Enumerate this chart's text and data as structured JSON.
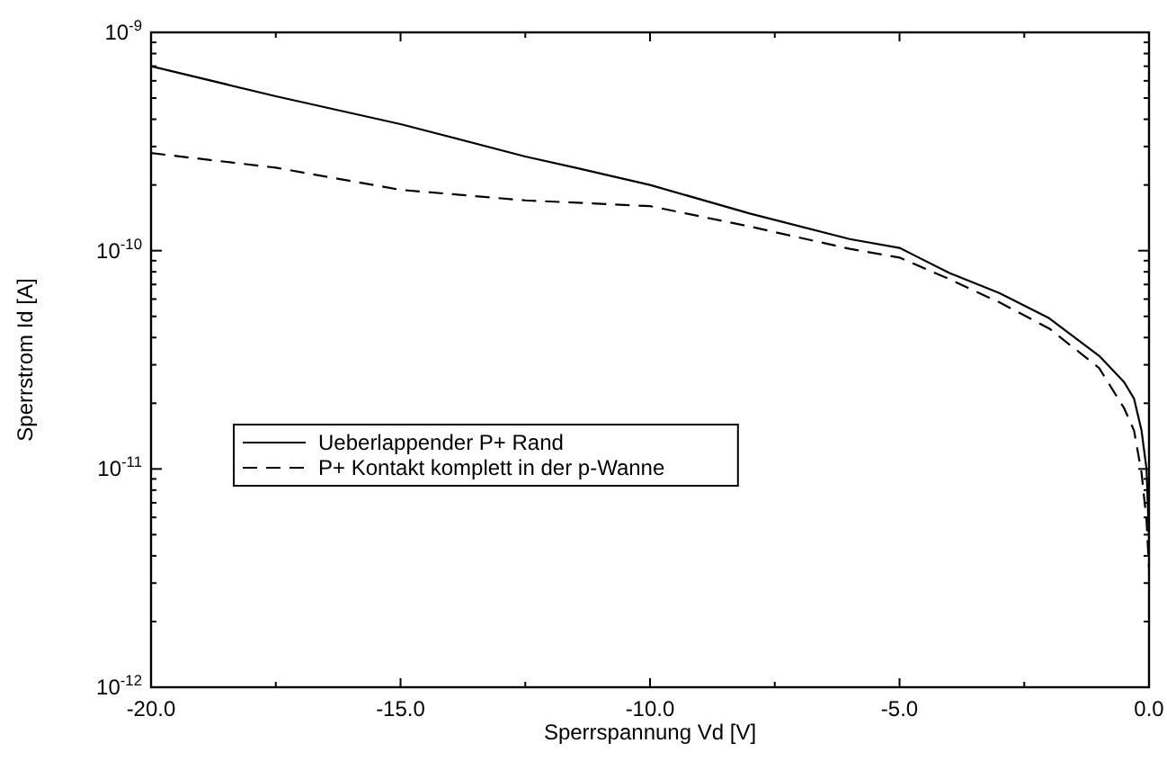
{
  "chart_data": {
    "type": "line",
    "xlabel": "Sperrspannung Vd [V]",
    "ylabel": "Sperrstrom Id [A]",
    "log": "y",
    "xlim": [
      -20,
      0
    ],
    "ylim": [
      1e-12,
      1e-09
    ],
    "xticks": [
      {
        "value": -20,
        "label": "-20.0"
      },
      {
        "value": -17.5,
        "label": null
      },
      {
        "value": -15,
        "label": "-15.0"
      },
      {
        "value": -12.5,
        "label": null
      },
      {
        "value": -10,
        "label": "-10.0"
      },
      {
        "value": -7.5,
        "label": null
      },
      {
        "value": -5,
        "label": "-5.0"
      },
      {
        "value": -2.5,
        "label": null
      },
      {
        "value": 0,
        "label": "0.0"
      }
    ],
    "yticks": [
      {
        "value": 1e-12,
        "label": "10$^{-12}$"
      },
      {
        "value": 2e-12,
        "label": null
      },
      {
        "value": 3e-12,
        "label": null
      },
      {
        "value": 4e-12,
        "label": null
      },
      {
        "value": 5e-12,
        "label": null
      },
      {
        "value": 6e-12,
        "label": null
      },
      {
        "value": 7e-12,
        "label": null
      },
      {
        "value": 8e-12,
        "label": null
      },
      {
        "value": 9e-12,
        "label": null
      },
      {
        "value": 1e-11,
        "label": "10$^{-11}$"
      },
      {
        "value": 2e-11,
        "label": null
      },
      {
        "value": 3e-11,
        "label": null
      },
      {
        "value": 4e-11,
        "label": null
      },
      {
        "value": 5e-11,
        "label": null
      },
      {
        "value": 6e-11,
        "label": null
      },
      {
        "value": 7e-11,
        "label": null
      },
      {
        "value": 8e-11,
        "label": null
      },
      {
        "value": 9e-11,
        "label": null
      },
      {
        "value": 1e-10,
        "label": "10$^{-10}$"
      },
      {
        "value": 2e-10,
        "label": null
      },
      {
        "value": 3e-10,
        "label": null
      },
      {
        "value": 4e-10,
        "label": null
      },
      {
        "value": 5e-10,
        "label": null
      },
      {
        "value": 6e-10,
        "label": null
      },
      {
        "value": 7e-10,
        "label": null
      },
      {
        "value": 8e-10,
        "label": null
      },
      {
        "value": 9e-10,
        "label": null
      },
      {
        "value": 1e-09,
        "label": "10$^{-9}$"
      }
    ],
    "grid": false,
    "legend": "center",
    "series": [
      {
        "name": "Ueberlappender P+ Rand",
        "color": "#000000",
        "line_style": "solid",
        "x": [
          -20,
          -17.5,
          -15,
          -12.5,
          -11.5,
          -10,
          -8,
          -6,
          -5,
          -4,
          -3,
          -2,
          -1,
          -0.5,
          -0.3,
          -0.15,
          -0.05,
          0
        ],
        "values": [
          7e-10,
          5.1e-10,
          3.8e-10,
          2.7e-10,
          2.4e-10,
          2e-10,
          1.48e-10,
          1.13e-10,
          1.03e-10,
          7.9e-11,
          6.4e-11,
          4.9e-11,
          3.3e-11,
          2.5e-11,
          2.1e-11,
          1.5e-11,
          1e-11,
          4.8e-12
        ]
      },
      {
        "name": "P+ Kontakt komplett in der p-Wanne",
        "color": "#000000",
        "line_style": "dashed",
        "x": [
          -20,
          -17.5,
          -15,
          -12.5,
          -10,
          -8,
          -6,
          -5,
          -4,
          -3,
          -2,
          -1,
          -0.5,
          -0.3,
          -0.15,
          -0.05,
          0
        ],
        "values": [
          2.8e-10,
          2.4e-10,
          1.9e-10,
          1.7e-10,
          1.6e-10,
          1.29e-10,
          1.02e-10,
          9.3e-11,
          7.4e-11,
          5.8e-11,
          4.4e-11,
          2.9e-11,
          1.9e-11,
          1.5e-11,
          9.6e-12,
          5.8e-12,
          3.5e-12
        ]
      }
    ]
  }
}
